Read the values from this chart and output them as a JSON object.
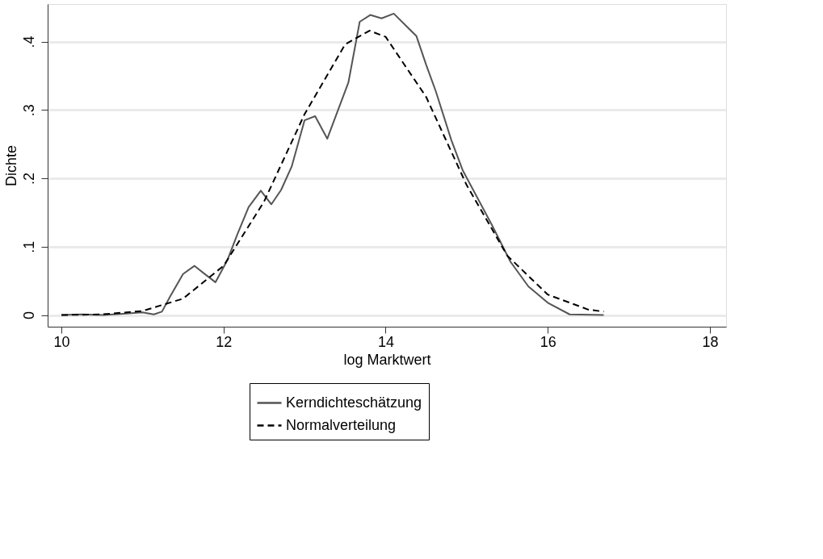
{
  "chart_data": {
    "type": "line",
    "xlabel": "log Marktwert",
    "ylabel": "Dichte",
    "xlim": [
      9.83,
      18.2
    ],
    "ylim": [
      -0.017,
      0.455
    ],
    "xticks": [
      10,
      12,
      14,
      16,
      18
    ],
    "yticks": [
      {
        "value": 0,
        "label": "0"
      },
      {
        "value": 0.1,
        "label": ".1"
      },
      {
        "value": 0.2,
        "label": ".2"
      },
      {
        "value": 0.3,
        "label": ".3"
      },
      {
        "value": 0.4,
        "label": ".4"
      }
    ],
    "grid": "y",
    "legend": "bottom",
    "marker": "none",
    "series": [
      {
        "name": "Kerndichteschätzung",
        "color": "#555555",
        "line_style": "solid",
        "x": [
          10,
          10.24,
          10.52,
          10.76,
          11.0,
          11.14,
          11.24,
          11.34,
          11.5,
          11.64,
          11.78,
          11.9,
          12.05,
          12.17,
          12.31,
          12.46,
          12.59,
          12.71,
          12.84,
          13.0,
          13.13,
          13.28,
          13.54,
          13.68,
          13.81,
          13.95,
          14.1,
          14.38,
          14.5,
          14.62,
          14.81,
          14.95,
          15.31,
          15.54,
          15.76,
          16.0,
          16.27,
          16.69
        ],
        "values": [
          0,
          0.001,
          0,
          0.002,
          0.004,
          0.001,
          0.005,
          0.027,
          0.06,
          0.072,
          0.059,
          0.048,
          0.081,
          0.118,
          0.158,
          0.182,
          0.162,
          0.183,
          0.217,
          0.285,
          0.291,
          0.258,
          0.34,
          0.429,
          0.439,
          0.434,
          0.441,
          0.408,
          0.366,
          0.327,
          0.256,
          0.212,
          0.132,
          0.078,
          0.042,
          0.018,
          0.001,
          0
        ]
      },
      {
        "name": "Normalverteilung",
        "color": "#000000",
        "line_style": "dashed",
        "x": [
          10,
          10.5,
          11,
          11.5,
          12,
          12.5,
          13,
          13.5,
          13.8,
          14,
          14.5,
          15,
          15.5,
          16,
          16.5,
          16.69
        ],
        "values": [
          0,
          0.001,
          0.006,
          0.024,
          0.072,
          0.166,
          0.294,
          0.396,
          0.416,
          0.407,
          0.319,
          0.19,
          0.087,
          0.03,
          0.008,
          0.005
        ]
      }
    ]
  }
}
